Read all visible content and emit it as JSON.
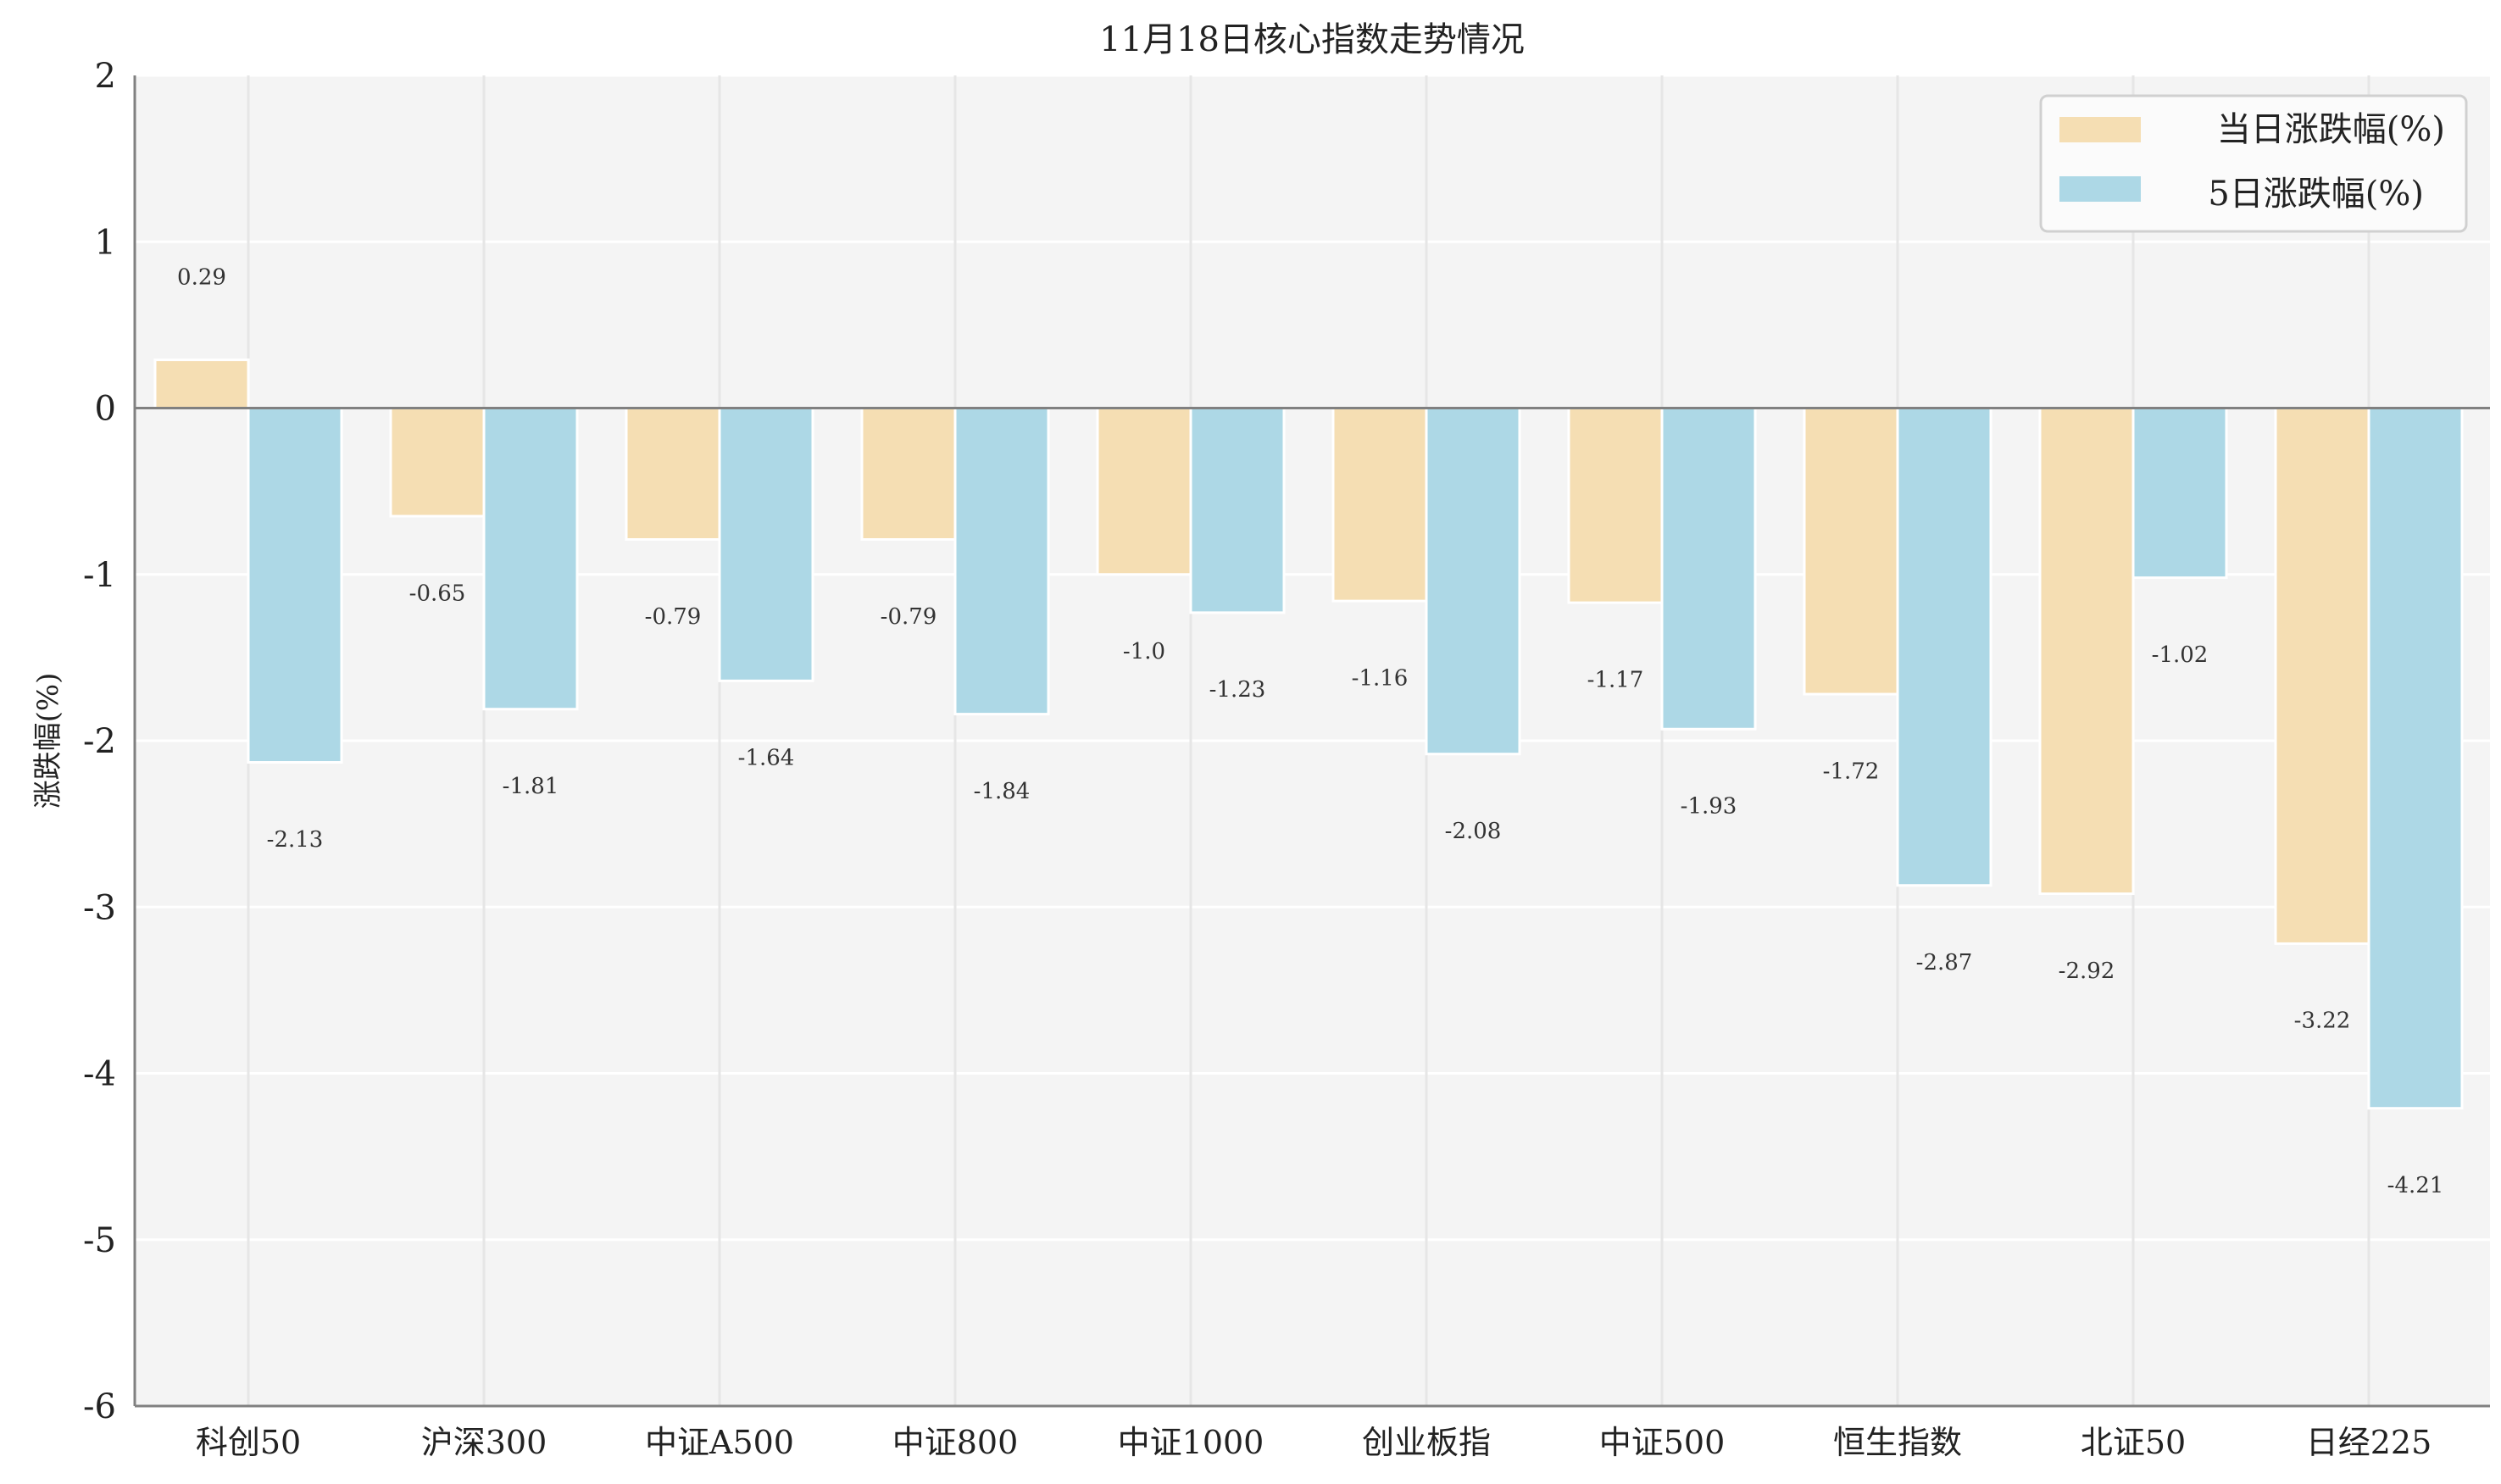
{
  "chart_data": {
    "type": "bar",
    "title": "11月18日核心指数走势情况",
    "xlabel": "",
    "ylabel": "涨跌幅(%)",
    "ylim": [
      -6,
      2
    ],
    "yticks": [
      2,
      1,
      0,
      -1,
      -2,
      -3,
      -4,
      -5,
      -6
    ],
    "grid": true,
    "legend_position": "top-right",
    "categories": [
      "科创50",
      "沪深300",
      "中证A500",
      "中证800",
      "中证1000",
      "创业板指",
      "中证500",
      "恒生指数",
      "北证50",
      "日经225"
    ],
    "series": [
      {
        "name": "当日涨跌幅(%)",
        "color": "#f5deb3",
        "values": [
          0.29,
          -0.65,
          -0.79,
          -0.79,
          -1.0,
          -1.16,
          -1.17,
          -1.72,
          -2.92,
          -3.22
        ],
        "labels": [
          "0.29",
          "-0.65",
          "-0.79",
          "-0.79",
          "-1.0",
          "-1.16",
          "-1.17",
          "-1.72",
          "-2.92",
          "-3.22"
        ]
      },
      {
        "name": "5日涨跌幅(%)",
        "color": "#add8e6",
        "values": [
          -2.13,
          -1.81,
          -1.64,
          -1.84,
          -1.23,
          -2.08,
          -1.93,
          -2.87,
          -1.02,
          -4.21
        ],
        "labels": [
          "-2.13",
          "-1.81",
          "-1.64",
          "-1.84",
          "-1.23",
          "-2.08",
          "-1.93",
          "-2.87",
          "-1.02",
          "-4.21"
        ]
      }
    ]
  }
}
